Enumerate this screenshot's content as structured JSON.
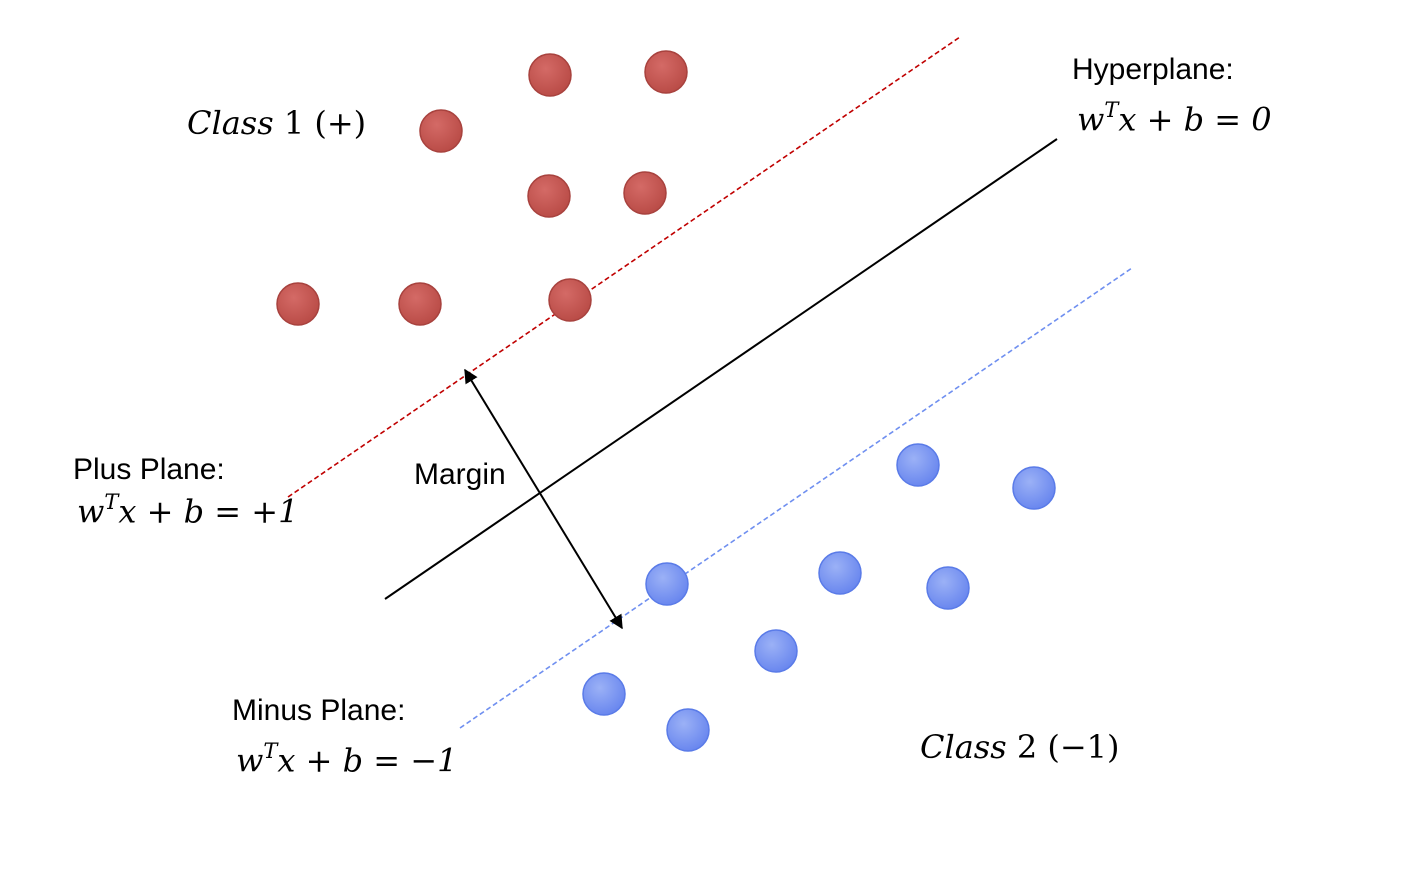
{
  "labels": {
    "hyperplane_title": "Hyperplane:",
    "plus_plane_title": "Plus Plane:",
    "minus_plane_title": "Minus Plane:",
    "margin": "Margin"
  },
  "equations": {
    "hyperplane": {
      "w": "w",
      "T": "T",
      "rest": "x + b = 0"
    },
    "plus_plane": {
      "w": "w",
      "T": "T",
      "rest": "x + b = +1"
    },
    "minus_plane": {
      "w": "w",
      "T": "T",
      "rest": "x + b = −1"
    }
  },
  "classes": {
    "class1": {
      "word": "Class",
      "rest": " 1 (+)"
    },
    "class2": {
      "word": "Class",
      "rest": " 2 (−1)"
    }
  },
  "colors": {
    "class1_point": "#c0504d",
    "class1_point_edge": "#b04540",
    "class2_point": "#6f8ff0",
    "class2_point_edge": "#5a7be8",
    "plus_plane_line": "#c00000",
    "minus_plane_line": "#6f8ff0",
    "hyperplane_line": "#000000",
    "margin_arrow": "#000000"
  }
}
